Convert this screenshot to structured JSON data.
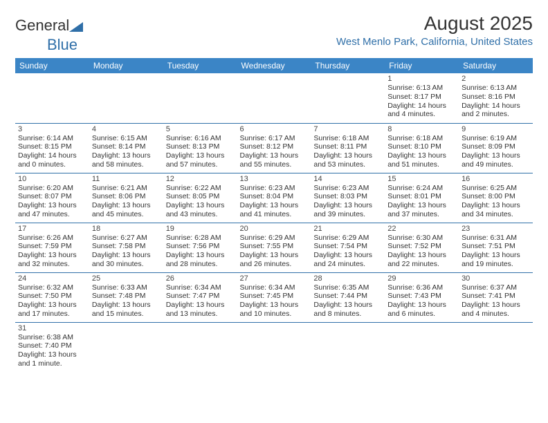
{
  "brand": {
    "part1": "General",
    "part2": "Blue"
  },
  "title": "August 2025",
  "location": "West Menlo Park, California, United States",
  "colors": {
    "header_bg": "#3b85c6",
    "header_text": "#ffffff",
    "rule": "#2f6fa8",
    "accent": "#2f6fa8",
    "text": "#333333",
    "background": "#ffffff"
  },
  "day_headers": [
    "Sunday",
    "Monday",
    "Tuesday",
    "Wednesday",
    "Thursday",
    "Friday",
    "Saturday"
  ],
  "weeks": [
    [
      null,
      null,
      null,
      null,
      null,
      {
        "n": "1",
        "sunrise": "Sunrise: 6:13 AM",
        "sunset": "Sunset: 8:17 PM",
        "day1": "Daylight: 14 hours",
        "day2": "and 4 minutes."
      },
      {
        "n": "2",
        "sunrise": "Sunrise: 6:13 AM",
        "sunset": "Sunset: 8:16 PM",
        "day1": "Daylight: 14 hours",
        "day2": "and 2 minutes."
      }
    ],
    [
      {
        "n": "3",
        "sunrise": "Sunrise: 6:14 AM",
        "sunset": "Sunset: 8:15 PM",
        "day1": "Daylight: 14 hours",
        "day2": "and 0 minutes."
      },
      {
        "n": "4",
        "sunrise": "Sunrise: 6:15 AM",
        "sunset": "Sunset: 8:14 PM",
        "day1": "Daylight: 13 hours",
        "day2": "and 58 minutes."
      },
      {
        "n": "5",
        "sunrise": "Sunrise: 6:16 AM",
        "sunset": "Sunset: 8:13 PM",
        "day1": "Daylight: 13 hours",
        "day2": "and 57 minutes."
      },
      {
        "n": "6",
        "sunrise": "Sunrise: 6:17 AM",
        "sunset": "Sunset: 8:12 PM",
        "day1": "Daylight: 13 hours",
        "day2": "and 55 minutes."
      },
      {
        "n": "7",
        "sunrise": "Sunrise: 6:18 AM",
        "sunset": "Sunset: 8:11 PM",
        "day1": "Daylight: 13 hours",
        "day2": "and 53 minutes."
      },
      {
        "n": "8",
        "sunrise": "Sunrise: 6:18 AM",
        "sunset": "Sunset: 8:10 PM",
        "day1": "Daylight: 13 hours",
        "day2": "and 51 minutes."
      },
      {
        "n": "9",
        "sunrise": "Sunrise: 6:19 AM",
        "sunset": "Sunset: 8:09 PM",
        "day1": "Daylight: 13 hours",
        "day2": "and 49 minutes."
      }
    ],
    [
      {
        "n": "10",
        "sunrise": "Sunrise: 6:20 AM",
        "sunset": "Sunset: 8:07 PM",
        "day1": "Daylight: 13 hours",
        "day2": "and 47 minutes."
      },
      {
        "n": "11",
        "sunrise": "Sunrise: 6:21 AM",
        "sunset": "Sunset: 8:06 PM",
        "day1": "Daylight: 13 hours",
        "day2": "and 45 minutes."
      },
      {
        "n": "12",
        "sunrise": "Sunrise: 6:22 AM",
        "sunset": "Sunset: 8:05 PM",
        "day1": "Daylight: 13 hours",
        "day2": "and 43 minutes."
      },
      {
        "n": "13",
        "sunrise": "Sunrise: 6:23 AM",
        "sunset": "Sunset: 8:04 PM",
        "day1": "Daylight: 13 hours",
        "day2": "and 41 minutes."
      },
      {
        "n": "14",
        "sunrise": "Sunrise: 6:23 AM",
        "sunset": "Sunset: 8:03 PM",
        "day1": "Daylight: 13 hours",
        "day2": "and 39 minutes."
      },
      {
        "n": "15",
        "sunrise": "Sunrise: 6:24 AM",
        "sunset": "Sunset: 8:01 PM",
        "day1": "Daylight: 13 hours",
        "day2": "and 37 minutes."
      },
      {
        "n": "16",
        "sunrise": "Sunrise: 6:25 AM",
        "sunset": "Sunset: 8:00 PM",
        "day1": "Daylight: 13 hours",
        "day2": "and 34 minutes."
      }
    ],
    [
      {
        "n": "17",
        "sunrise": "Sunrise: 6:26 AM",
        "sunset": "Sunset: 7:59 PM",
        "day1": "Daylight: 13 hours",
        "day2": "and 32 minutes."
      },
      {
        "n": "18",
        "sunrise": "Sunrise: 6:27 AM",
        "sunset": "Sunset: 7:58 PM",
        "day1": "Daylight: 13 hours",
        "day2": "and 30 minutes."
      },
      {
        "n": "19",
        "sunrise": "Sunrise: 6:28 AM",
        "sunset": "Sunset: 7:56 PM",
        "day1": "Daylight: 13 hours",
        "day2": "and 28 minutes."
      },
      {
        "n": "20",
        "sunrise": "Sunrise: 6:29 AM",
        "sunset": "Sunset: 7:55 PM",
        "day1": "Daylight: 13 hours",
        "day2": "and 26 minutes."
      },
      {
        "n": "21",
        "sunrise": "Sunrise: 6:29 AM",
        "sunset": "Sunset: 7:54 PM",
        "day1": "Daylight: 13 hours",
        "day2": "and 24 minutes."
      },
      {
        "n": "22",
        "sunrise": "Sunrise: 6:30 AM",
        "sunset": "Sunset: 7:52 PM",
        "day1": "Daylight: 13 hours",
        "day2": "and 22 minutes."
      },
      {
        "n": "23",
        "sunrise": "Sunrise: 6:31 AM",
        "sunset": "Sunset: 7:51 PM",
        "day1": "Daylight: 13 hours",
        "day2": "and 19 minutes."
      }
    ],
    [
      {
        "n": "24",
        "sunrise": "Sunrise: 6:32 AM",
        "sunset": "Sunset: 7:50 PM",
        "day1": "Daylight: 13 hours",
        "day2": "and 17 minutes."
      },
      {
        "n": "25",
        "sunrise": "Sunrise: 6:33 AM",
        "sunset": "Sunset: 7:48 PM",
        "day1": "Daylight: 13 hours",
        "day2": "and 15 minutes."
      },
      {
        "n": "26",
        "sunrise": "Sunrise: 6:34 AM",
        "sunset": "Sunset: 7:47 PM",
        "day1": "Daylight: 13 hours",
        "day2": "and 13 minutes."
      },
      {
        "n": "27",
        "sunrise": "Sunrise: 6:34 AM",
        "sunset": "Sunset: 7:45 PM",
        "day1": "Daylight: 13 hours",
        "day2": "and 10 minutes."
      },
      {
        "n": "28",
        "sunrise": "Sunrise: 6:35 AM",
        "sunset": "Sunset: 7:44 PM",
        "day1": "Daylight: 13 hours",
        "day2": "and 8 minutes."
      },
      {
        "n": "29",
        "sunrise": "Sunrise: 6:36 AM",
        "sunset": "Sunset: 7:43 PM",
        "day1": "Daylight: 13 hours",
        "day2": "and 6 minutes."
      },
      {
        "n": "30",
        "sunrise": "Sunrise: 6:37 AM",
        "sunset": "Sunset: 7:41 PM",
        "day1": "Daylight: 13 hours",
        "day2": "and 4 minutes."
      }
    ],
    [
      {
        "n": "31",
        "sunrise": "Sunrise: 6:38 AM",
        "sunset": "Sunset: 7:40 PM",
        "day1": "Daylight: 13 hours",
        "day2": "and 1 minute."
      },
      null,
      null,
      null,
      null,
      null,
      null
    ]
  ]
}
